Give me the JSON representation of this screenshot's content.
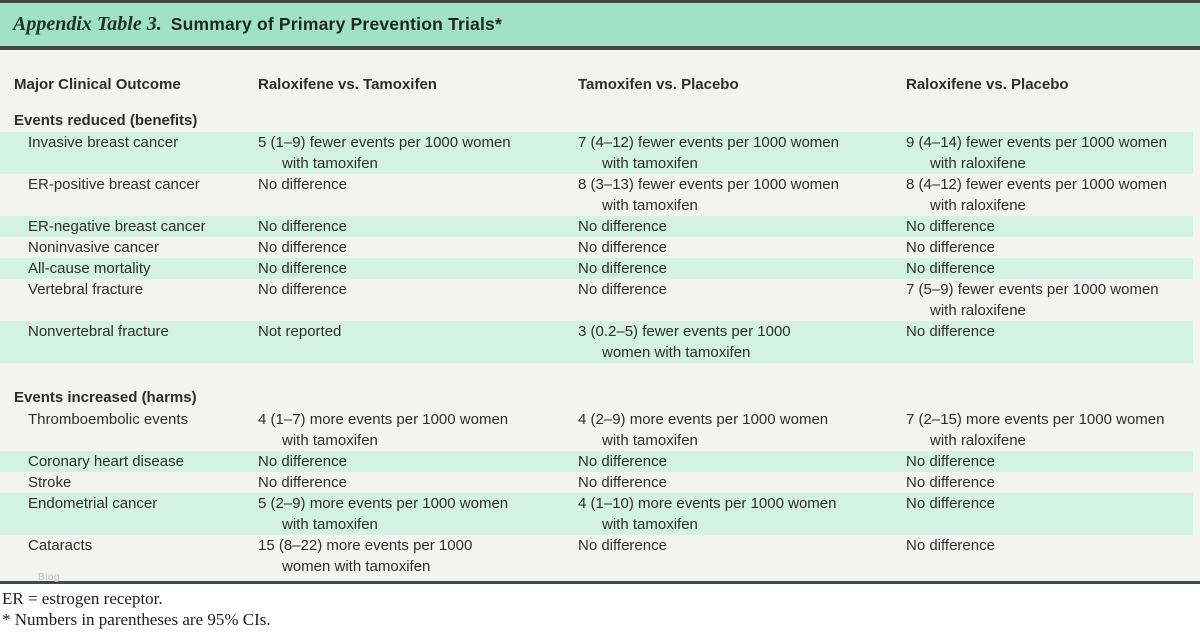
{
  "title": {
    "label_italic": "Appendix Table 3.",
    "label_bold": "Summary of Primary Prevention Trials*"
  },
  "table": {
    "columns": [
      "Major Clinical Outcome",
      "Raloxifene vs. Tamoxifen",
      "Tamoxifen vs. Placebo",
      "Raloxifene vs. Placebo"
    ],
    "sections": [
      {
        "title": "Events reduced (benefits)",
        "rows": [
          {
            "outcome": "Invasive breast cancer",
            "shade": "green",
            "size": "tall",
            "cells": [
              [
                "5 (1–9) fewer events per 1000 women",
                "with tamoxifen"
              ],
              [
                "7 (4–12) fewer events per 1000 women",
                "with tamoxifen"
              ],
              [
                "9 (4–14) fewer events per 1000 women",
                "with raloxifene"
              ]
            ]
          },
          {
            "outcome": "ER-positive breast cancer",
            "shade": "white",
            "size": "tall",
            "cells": [
              [
                "No difference"
              ],
              [
                "8 (3–13) fewer events per 1000 women",
                "with tamoxifen"
              ],
              [
                "8 (4–12) fewer events per 1000 women",
                "with raloxifene"
              ]
            ]
          },
          {
            "outcome": "ER-negative breast cancer",
            "shade": "green",
            "size": "short",
            "cells": [
              [
                "No difference"
              ],
              [
                "No difference"
              ],
              [
                "No difference"
              ]
            ]
          },
          {
            "outcome": "Noninvasive cancer",
            "shade": "white",
            "size": "short",
            "cells": [
              [
                "No difference"
              ],
              [
                "No difference"
              ],
              [
                "No difference"
              ]
            ]
          },
          {
            "outcome": "All-cause mortality",
            "shade": "green",
            "size": "short",
            "cells": [
              [
                "No difference"
              ],
              [
                "No difference"
              ],
              [
                "No difference"
              ]
            ]
          },
          {
            "outcome": "Vertebral fracture",
            "shade": "white",
            "size": "tall",
            "cells": [
              [
                "No difference"
              ],
              [
                "No difference"
              ],
              [
                "7 (5–9) fewer events per 1000 women",
                "with raloxifene"
              ]
            ]
          },
          {
            "outcome": "Nonvertebral fracture",
            "shade": "green",
            "size": "tall",
            "cells": [
              [
                "Not reported"
              ],
              [
                "3 (0.2–5) fewer events per 1000",
                "women with tamoxifen"
              ],
              [
                "No difference"
              ]
            ]
          }
        ]
      },
      {
        "title": "Events increased (harms)",
        "rows": [
          {
            "outcome": "Thromboembolic events",
            "shade": "white",
            "size": "tall",
            "cells": [
              [
                "4 (1–7) more events per 1000 women",
                "with tamoxifen"
              ],
              [
                "4 (2–9) more events per 1000 women",
                "with tamoxifen"
              ],
              [
                "7 (2–15) more events per 1000 women",
                "with raloxifene"
              ]
            ]
          },
          {
            "outcome": "Coronary heart disease",
            "shade": "green",
            "size": "short",
            "cells": [
              [
                "No difference"
              ],
              [
                "No difference"
              ],
              [
                "No difference"
              ]
            ]
          },
          {
            "outcome": "Stroke",
            "shade": "white",
            "size": "short",
            "cells": [
              [
                "No difference"
              ],
              [
                "No difference"
              ],
              [
                "No difference"
              ]
            ]
          },
          {
            "outcome": "Endometrial cancer",
            "shade": "green",
            "size": "tall",
            "cells": [
              [
                "5 (2–9) more events per 1000 women",
                "with tamoxifen"
              ],
              [
                "4 (1–10) more events per 1000 women",
                "with tamoxifen"
              ],
              [
                "No difference"
              ]
            ]
          },
          {
            "outcome": "Cataracts",
            "shade": "white",
            "size": "tall",
            "cells": [
              [
                "15 (8–22) more events per 1000",
                "women with tamoxifen"
              ],
              [
                "No difference"
              ],
              [
                "No difference"
              ]
            ]
          }
        ]
      }
    ]
  },
  "footnotes": [
    "ER = estrogen receptor.",
    "* Numbers in parentheses are 95% CIs."
  ],
  "watermark": "Blog",
  "colors": {
    "header_bg": "#9fe2c9",
    "row_green": "#d3f2e3",
    "body_bg": "#f3f4f2",
    "rule": "#3d4a46"
  }
}
